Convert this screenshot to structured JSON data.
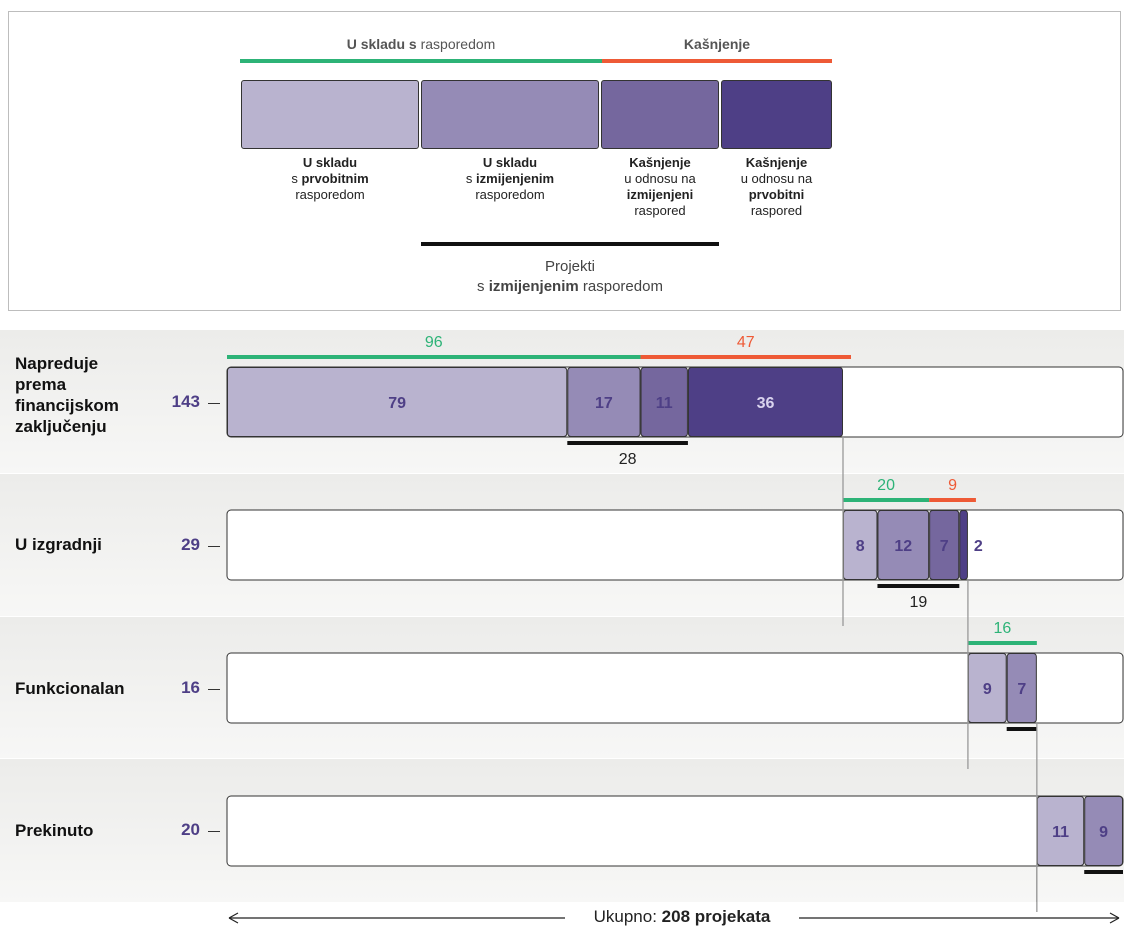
{
  "legend": {
    "on_schedule_bold": "U skladu s",
    "on_schedule_rest": " rasporedom",
    "delay": "Kašnjenje",
    "boxes": [
      {
        "l1": "U skladu",
        "l2a": "s ",
        "l2b": "prvobitnim",
        "l3": "rasporedom",
        "l4": ""
      },
      {
        "l1": "U skladu",
        "l2a": "s ",
        "l2b": "izmijenjenim",
        "l3": "rasporedom",
        "l4": ""
      },
      {
        "l1": "Kašnjenje",
        "l2a": "u odnosu na",
        "l2b": "",
        "l3": "izmijenjeni",
        "l4": "raspored"
      },
      {
        "l1": "Kašnjenje",
        "l2a": "u odnosu na",
        "l2b": "",
        "l3": "prvobitni",
        "l4": "raspored"
      }
    ],
    "revised_line1": "Projekti",
    "revised_line2a": "s ",
    "revised_line2b": "izmijenjenim",
    "revised_line2c": " rasporedom"
  },
  "colors": {
    "original": "#b9b3cf",
    "revised": "#958bb6",
    "delay_revised": "#75679e",
    "delay_original": "#4e3f86",
    "green": "#2db377",
    "red": "#ee5a36",
    "band": "#ededea"
  },
  "chart_data": {
    "type": "bar",
    "title": "",
    "total_label_a": "Ukupno: ",
    "total_label_b": "208 projekata",
    "series": [
      {
        "name": "U skladu s prvobitnim rasporedom"
      },
      {
        "name": "U skladu s izmijenjenim rasporedom"
      },
      {
        "name": "Kašnjenje u odnosu na izmijenjeni raspored"
      },
      {
        "name": "Kašnjenje u odnosu na prvobitni raspored"
      }
    ],
    "rows": [
      {
        "label": "Napreduje prema financijskom zaključenju",
        "total": "143",
        "values": [
          79,
          17,
          11,
          36
        ],
        "on_schedule": "96",
        "delay": "47",
        "revised": "28"
      },
      {
        "label": "U izgradnji",
        "total": "29",
        "values": [
          8,
          12,
          7,
          2
        ],
        "on_schedule": "20",
        "delay": "9",
        "revised": "19"
      },
      {
        "label": "Funkcionalan",
        "total": "16",
        "values": [
          9,
          7
        ],
        "on_schedule": "16",
        "delay": "",
        "revised": ""
      },
      {
        "label": "Prekinuto",
        "total": "20",
        "values": [
          11,
          9
        ],
        "on_schedule": "",
        "delay": "",
        "revised": ""
      }
    ]
  }
}
